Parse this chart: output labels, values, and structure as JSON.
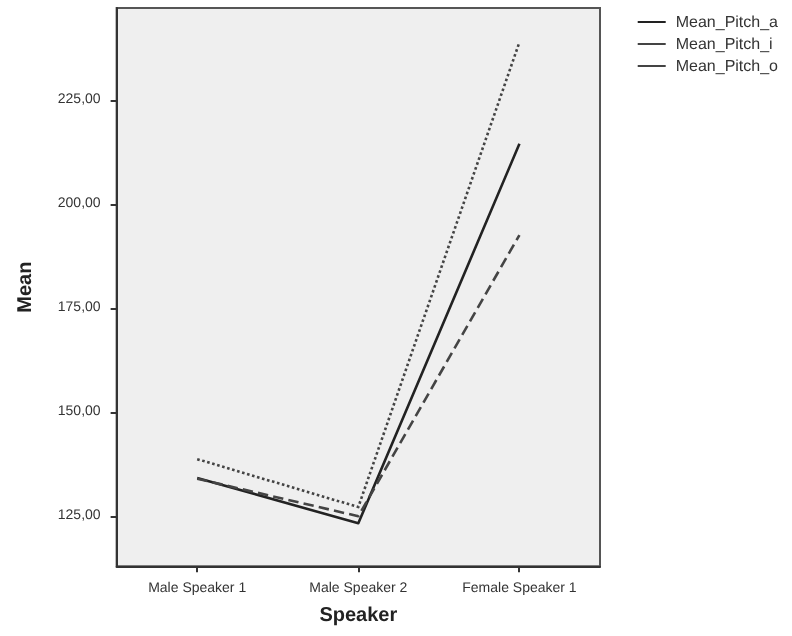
{
  "chart_data": {
    "type": "line",
    "xlabel": "Speaker",
    "ylabel": "Mean",
    "categories": [
      "Male Speaker 1",
      "Male Speaker 2",
      "Female Speaker 1"
    ],
    "series": [
      {
        "name": "Mean_Pitch_a",
        "color": "#222222",
        "line_style": "solid",
        "values": [
          134.2,
          123.3,
          214.4
        ]
      },
      {
        "name": "Mean_Pitch_i",
        "color": "#444444",
        "line_style": "dotted",
        "values": [
          138.7,
          127.2,
          238.8
        ]
      },
      {
        "name": "Mean_Pitch_o",
        "color": "#444444",
        "line_style": "dashed",
        "values": [
          134.0,
          125.0,
          192.5
        ]
      }
    ],
    "ylim": [
      113,
      247
    ],
    "yticks": [
      {
        "value": 125,
        "label": "125,00"
      },
      {
        "value": 150,
        "label": "150,00"
      },
      {
        "value": 175,
        "label": "175,00"
      },
      {
        "value": 200,
        "label": "200,00"
      },
      {
        "value": 225,
        "label": "225,00"
      }
    ],
    "legend": "top right",
    "marker": "none",
    "grid": false
  }
}
